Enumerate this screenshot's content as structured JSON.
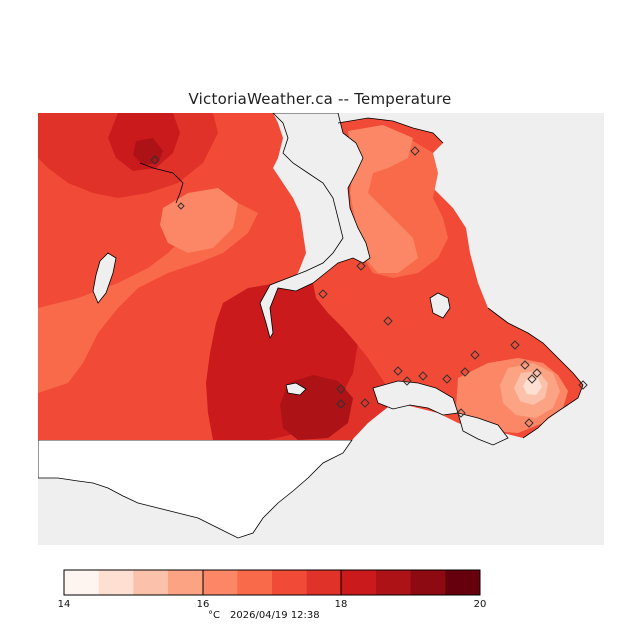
{
  "title": "VictoriaWeather.ca -- Temperature",
  "legend": {
    "ticks": [
      "14",
      "16",
      "18",
      "20"
    ],
    "unit": "°C",
    "timestamp": "2026/04/19 12:38",
    "colors": [
      "#fff5f0",
      "#fee0d2",
      "#fcc1aa",
      "#fca384",
      "#fc8767",
      "#f96a4a",
      "#f14a36",
      "#e13229",
      "#ca1a1c",
      "#ac1216",
      "#8e0a12",
      "#67000d"
    ]
  },
  "map": {
    "water_color": "#efefef",
    "land_blank_color": "#ffffff",
    "station_count": 22
  }
}
